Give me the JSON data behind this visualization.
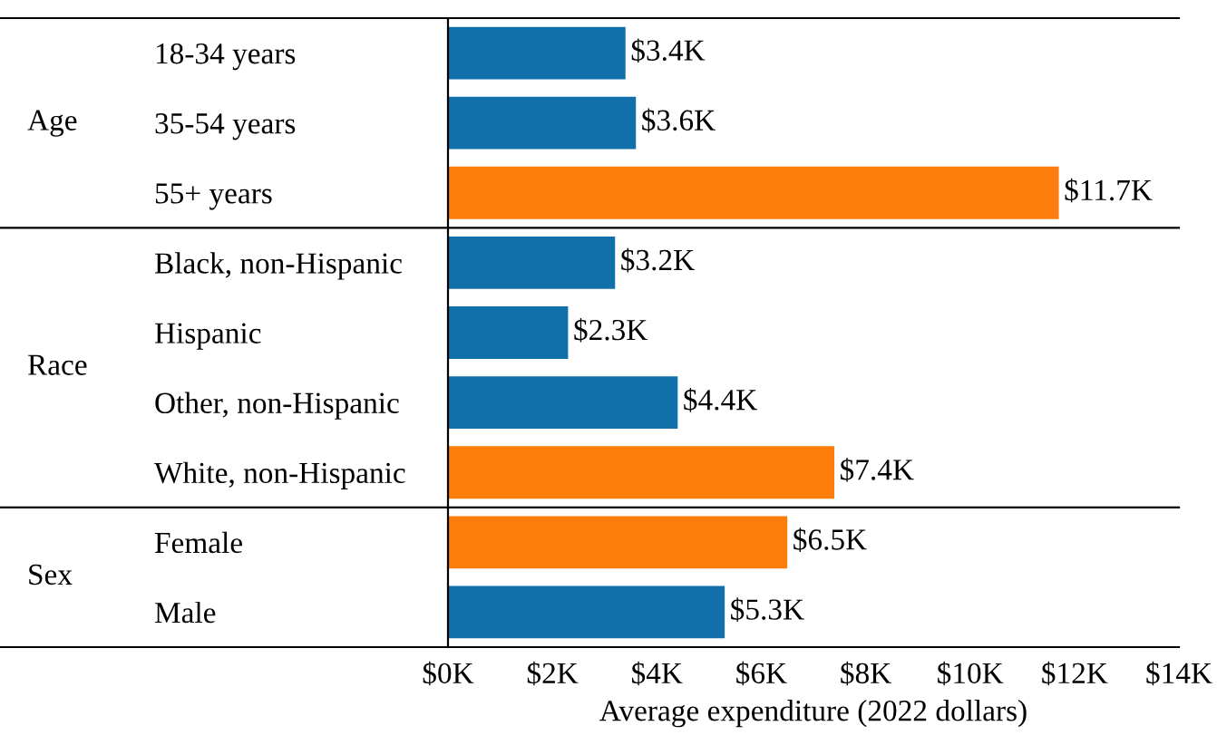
{
  "chart_data": {
    "type": "bar",
    "orientation": "horizontal",
    "xlabel": "Average expenditure (2022 dollars)",
    "categories": [
      "18-34 years",
      "35-54 years",
      "55+ years",
      "Black, non-Hispanic",
      "Hispanic",
      "Other, non-Hispanic",
      "White, non-Hispanic",
      "Female",
      "Male"
    ],
    "values": [
      3.4,
      3.6,
      11.7,
      3.2,
      2.3,
      4.4,
      7.4,
      6.5,
      5.3
    ],
    "colors": [
      "#1170aa",
      "#1170aa",
      "#fc7d0b",
      "#1170aa",
      "#1170aa",
      "#1170aa",
      "#fc7d0b",
      "#fc7d0b",
      "#1170aa"
    ],
    "value_labels": [
      "$3.4K",
      "$3.6K",
      "$11.7K",
      "$3.2K",
      "$2.3K",
      "$4.4K",
      "$7.4K",
      "$6.5K",
      "$5.3K"
    ],
    "xlim": [
      0,
      14
    ],
    "xticks": [
      {
        "value": 0,
        "label": "$0K"
      },
      {
        "value": 2,
        "label": "$2K"
      },
      {
        "value": 4,
        "label": "$4K"
      },
      {
        "value": 6,
        "label": "$6K"
      },
      {
        "value": 8,
        "label": "$8K"
      },
      {
        "value": 10,
        "label": "$10K"
      },
      {
        "value": 12,
        "label": "$12K"
      },
      {
        "value": 14,
        "label": "$14K"
      }
    ],
    "annotations": [
      "Age",
      "Race",
      "Sex"
    ],
    "grid": false
  }
}
